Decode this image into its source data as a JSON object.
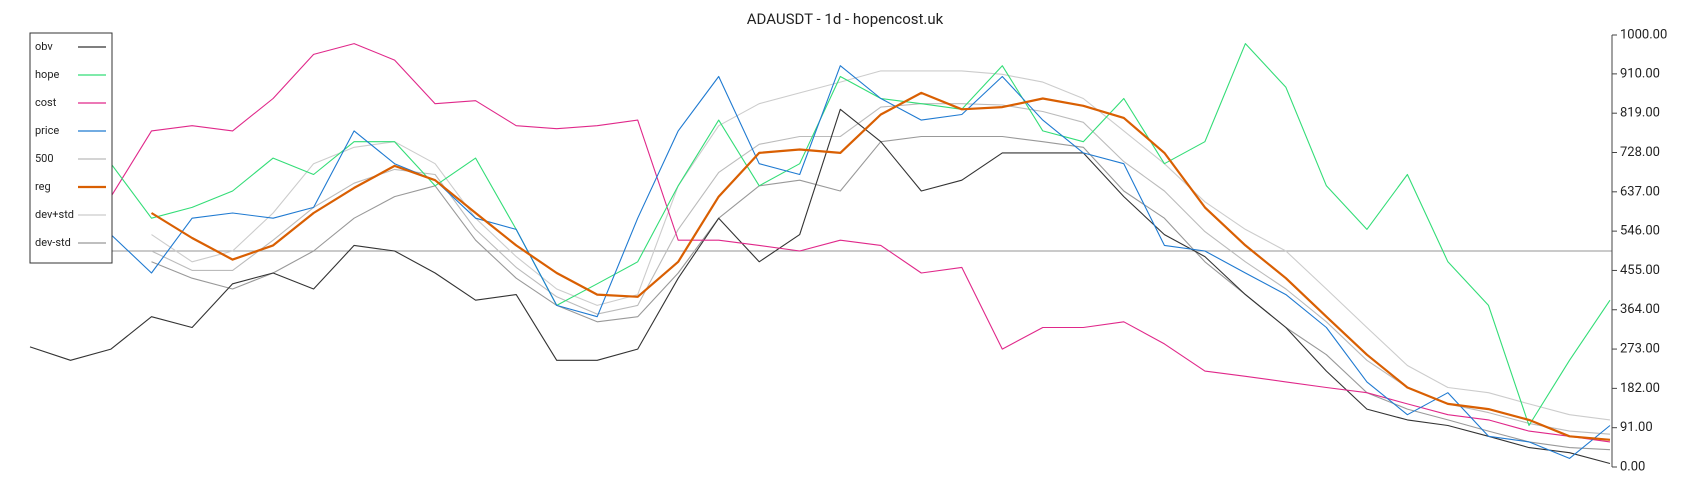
{
  "chart_data": {
    "type": "line",
    "title": "ADAUSDT - 1d - hopencost.uk",
    "ylim": [
      0,
      1000
    ],
    "yticks": [
      {
        "value": 0,
        "label": "0.00"
      },
      {
        "value": 91,
        "label": "91.00"
      },
      {
        "value": 182,
        "label": "182.00"
      },
      {
        "value": 273,
        "label": "273.00"
      },
      {
        "value": 364,
        "label": "364.00"
      },
      {
        "value": 455,
        "label": "455.00"
      },
      {
        "value": 546,
        "label": "546.00"
      },
      {
        "value": 637,
        "label": "637.00"
      },
      {
        "value": 728,
        "label": "728.00"
      },
      {
        "value": 819,
        "label": "819.00"
      },
      {
        "value": 910,
        "label": "910.00"
      },
      {
        "value": 1000,
        "label": "1000.00"
      }
    ],
    "reference_line": 500,
    "legend": "upper left",
    "series": [
      {
        "name": "obv",
        "color": "#333333",
        "values": [
          278,
          247,
          273,
          348,
          323,
          424,
          449,
          412,
          513,
          500,
          449,
          386,
          399,
          247,
          247,
          273,
          437,
          576,
          475,
          538,
          828,
          753,
          639,
          664,
          727,
          727,
          727,
          626,
          538,
          487,
          399,
          323,
          222,
          134,
          109,
          96,
          71,
          45,
          33,
          8
        ]
      },
      {
        "name": "hope",
        "color": "#33dd77",
        "values": [
          null,
          null,
          702,
          576,
          601,
          639,
          715,
          677,
          753,
          753,
          651,
          715,
          550,
          374,
          424,
          475,
          651,
          803,
          651,
          702,
          904,
          853,
          841,
          828,
          929,
          778,
          753,
          853,
          702,
          753,
          980,
          879,
          651,
          550,
          677,
          475,
          374,
          96,
          247,
          386
        ]
      },
      {
        "name": "cost",
        "color": "#e0288a",
        "values": [
          null,
          null,
          626,
          778,
          790,
          778,
          853,
          955,
          980,
          942,
          841,
          848,
          790,
          783,
          790,
          803,
          525,
          525,
          513,
          500,
          525,
          513,
          449,
          462,
          273,
          323,
          323,
          336,
          285,
          222,
          210,
          197,
          184,
          172,
          146,
          121,
          109,
          83,
          71,
          58
        ]
      },
      {
        "name": "price",
        "color": "#1f7ad1",
        "values": [
          null,
          null,
          538,
          449,
          576,
          588,
          576,
          601,
          778,
          702,
          664,
          576,
          550,
          374,
          348,
          576,
          778,
          904,
          702,
          677,
          929,
          853,
          803,
          816,
          904,
          803,
          727,
          702,
          513,
          500,
          449,
          399,
          323,
          197,
          121,
          172,
          71,
          58,
          20,
          96
        ]
      },
      {
        "name": "500",
        "color": "#bbbbbb",
        "values": [
          null,
          null,
          null,
          500,
          455,
          455,
          525,
          601,
          657,
          689,
          677,
          550,
          462,
          394,
          354,
          374,
          550,
          682,
          747,
          765,
          765,
          833,
          841,
          841,
          838,
          823,
          798,
          707,
          639,
          545,
          475,
          412,
          336,
          247,
          184,
          146,
          126,
          101,
          83,
          76
        ]
      },
      {
        "name": "reg",
        "color": "#d95f02",
        "values": [
          null,
          null,
          null,
          588,
          530,
          480,
          513,
          588,
          646,
          697,
          664,
          588,
          513,
          449,
          399,
          394,
          475,
          626,
          727,
          735,
          727,
          816,
          866,
          828,
          833,
          853,
          836,
          808,
          727,
          601,
          513,
          437,
          348,
          260,
          184,
          146,
          134,
          109,
          71,
          63
        ]
      },
      {
        "name": "dev+std",
        "color": "#cccccc",
        "values": [
          null,
          null,
          null,
          538,
          475,
          500,
          588,
          702,
          740,
          753,
          702,
          576,
          487,
          412,
          374,
          399,
          651,
          790,
          841,
          866,
          891,
          917,
          917,
          917,
          909,
          891,
          853,
          778,
          702,
          614,
          550,
          500,
          412,
          323,
          235,
          184,
          172,
          146,
          121,
          109
        ]
      },
      {
        "name": "dev-std",
        "color": "#999999",
        "values": [
          null,
          null,
          null,
          475,
          437,
          412,
          449,
          500,
          576,
          626,
          651,
          525,
          437,
          374,
          336,
          348,
          449,
          576,
          651,
          664,
          639,
          753,
          765,
          765,
          765,
          753,
          740,
          639,
          576,
          475,
          399,
          323,
          260,
          172,
          134,
          109,
          83,
          58,
          45,
          40
        ]
      }
    ]
  }
}
